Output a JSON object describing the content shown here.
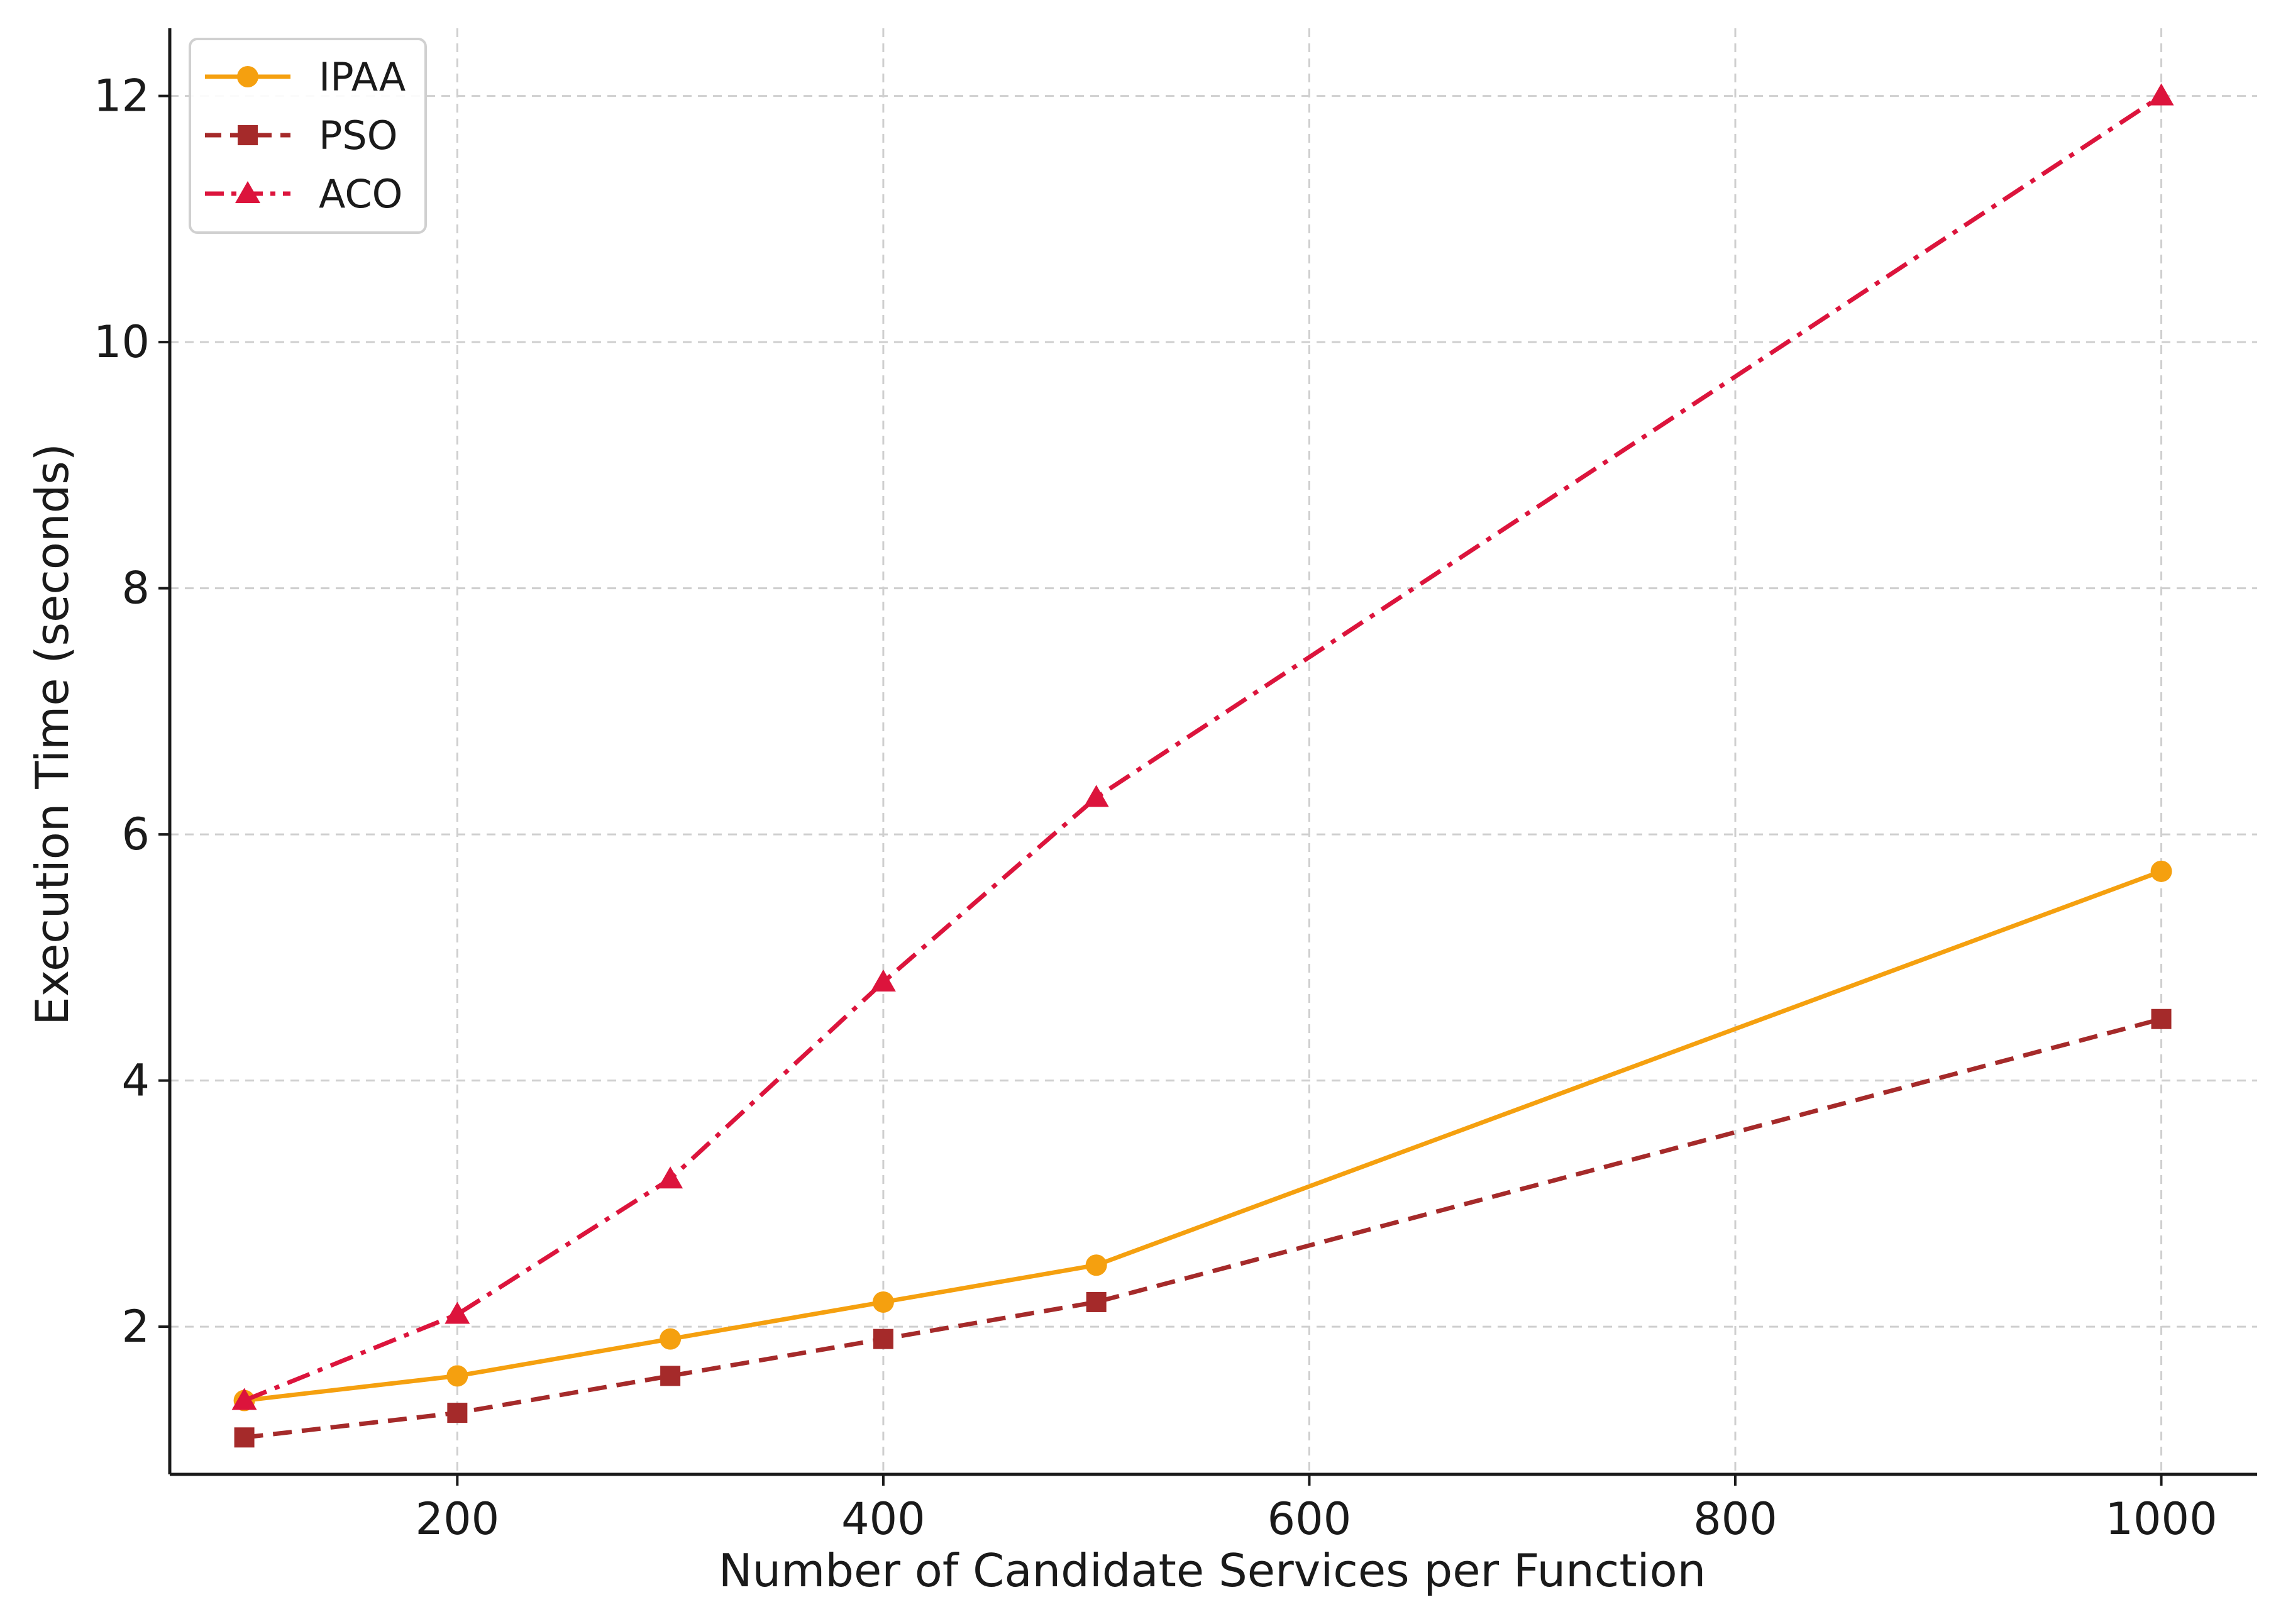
{
  "chart_data": {
    "type": "line",
    "xlabel": "Number of Candidate Services per Function",
    "ylabel": "Execution Time (seconds)",
    "xlim": [
      65,
      1045
    ],
    "ylim": [
      0.8,
      12.55
    ],
    "x_ticks": [
      200,
      400,
      600,
      800,
      1000
    ],
    "y_ticks": [
      2,
      4,
      6,
      8,
      10,
      12
    ],
    "grid": true,
    "legend_position": "top-left",
    "x": [
      100,
      200,
      300,
      400,
      500,
      1000
    ],
    "series": [
      {
        "name": "IPAA",
        "values": [
          1.4,
          1.6,
          1.9,
          2.2,
          2.5,
          5.7
        ],
        "color": "#f5a00f",
        "line_style": "solid",
        "marker": "circle"
      },
      {
        "name": "PSO",
        "values": [
          1.1,
          1.3,
          1.6,
          1.9,
          2.2,
          4.5
        ],
        "color": "#a52a2a",
        "line_style": "dashed",
        "marker": "square"
      },
      {
        "name": "ACO",
        "values": [
          1.4,
          2.1,
          3.2,
          4.8,
          6.3,
          12.0
        ],
        "color": "#dc143c",
        "line_style": "dashdot",
        "marker": "triangle"
      }
    ]
  }
}
